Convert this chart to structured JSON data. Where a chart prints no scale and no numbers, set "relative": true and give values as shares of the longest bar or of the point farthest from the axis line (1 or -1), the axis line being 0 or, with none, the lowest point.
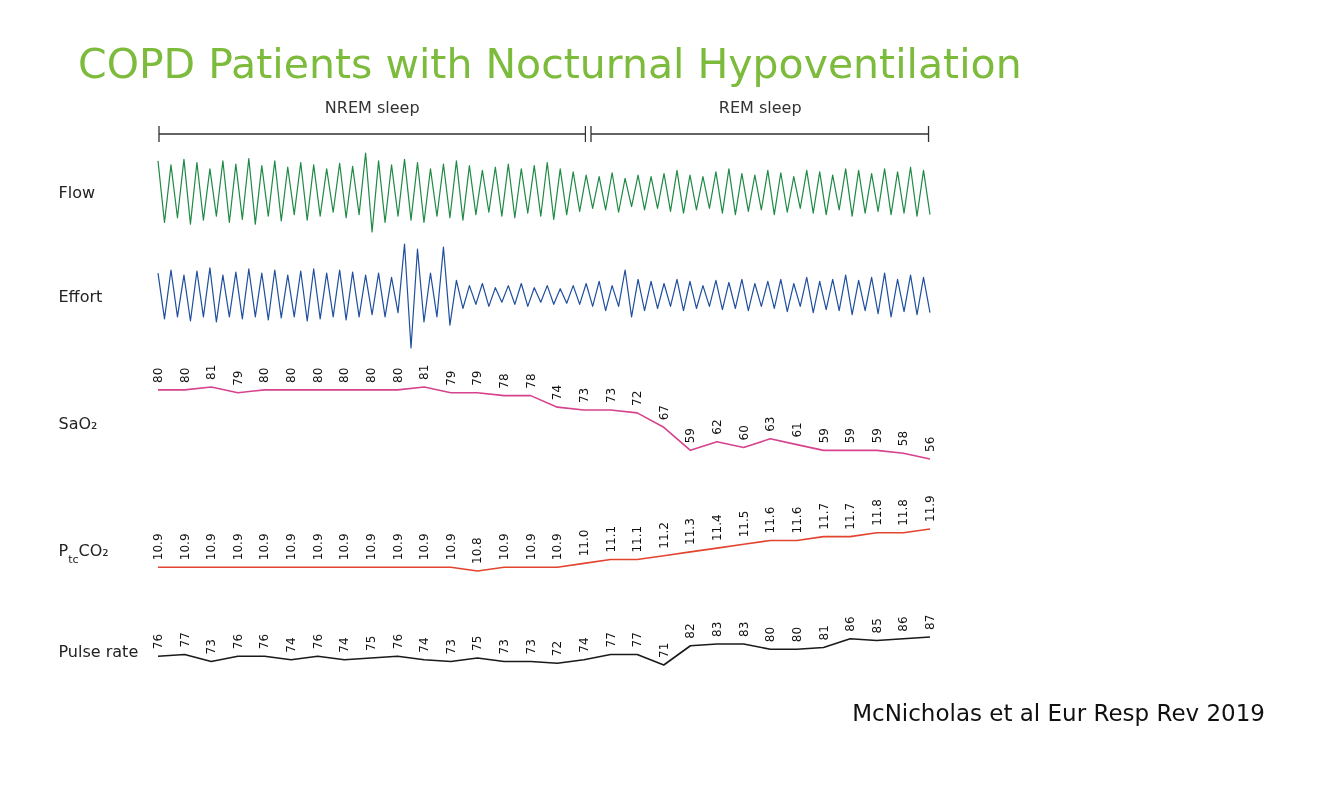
{
  "chart_data": [
    {
      "type": "line",
      "title": "COPD Patients with Nocturnal Hypoventilation",
      "ylabel": "Flow",
      "relative": true,
      "annotations": [
        "NREM sleep",
        "REM sleep"
      ],
      "categories": [
        null,
        null,
        null,
        null,
        null,
        null,
        null,
        null,
        null,
        null,
        null,
        null,
        null,
        null,
        null,
        null,
        null,
        null,
        null,
        null,
        null,
        null,
        null,
        null,
        null,
        null,
        null,
        null,
        null,
        null,
        null,
        null,
        null,
        null,
        null,
        null,
        null,
        null,
        null,
        null,
        null,
        null,
        null,
        null,
        null,
        null,
        null,
        null,
        null,
        null,
        null,
        null,
        null,
        null,
        null,
        null,
        null,
        null,
        null,
        null,
        null,
        null,
        null,
        null,
        null,
        null,
        null,
        null,
        null,
        null,
        null,
        null,
        null,
        null,
        null,
        null,
        null,
        null,
        null,
        null,
        null,
        null,
        null,
        null,
        null,
        null,
        null,
        null,
        null,
        null,
        null,
        null,
        null,
        null,
        null,
        null,
        null,
        null,
        null,
        null,
        null,
        null,
        null,
        null,
        null,
        null,
        null,
        null,
        null,
        null,
        null,
        null,
        null,
        null,
        null,
        null,
        null,
        null,
        null,
        null
      ],
      "series": [
        {
          "color": "#1e8a45",
          "values": [
            0.9,
            0.12,
            0.85,
            0.18,
            0.92,
            0.1,
            0.88,
            0.15,
            0.8,
            0.2,
            0.9,
            0.12,
            0.86,
            0.16,
            0.93,
            0.1,
            0.84,
            0.2,
            0.9,
            0.14,
            0.82,
            0.22,
            0.88,
            0.15,
            0.85,
            0.2,
            0.8,
            0.25,
            0.87,
            0.18,
            0.83,
            0.22,
            1,
            0,
            0.9,
            0.12,
            0.85,
            0.2,
            0.92,
            0.15,
            0.88,
            0.12,
            0.8,
            0.2,
            0.86,
            0.18,
            0.9,
            0.15,
            0.84,
            0.22,
            0.78,
            0.25,
            0.82,
            0.2,
            0.86,
            0.18,
            0.8,
            0.24,
            0.84,
            0.2,
            0.88,
            0.16,
            0.8,
            0.22,
            0.76,
            0.26,
            0.72,
            0.3,
            0.7,
            0.28,
            0.75,
            0.25,
            0.68,
            0.32,
            0.72,
            0.28,
            0.7,
            0.3,
            0.74,
            0.26,
            0.78,
            0.24,
            0.72,
            0.28,
            0.7,
            0.3,
            0.76,
            0.24,
            0.8,
            0.22,
            0.74,
            0.26,
            0.72,
            0.28,
            0.78,
            0.22,
            0.75,
            0.25,
            0.7,
            0.3,
            0.78,
            0.24,
            0.76,
            0.22,
            0.72,
            0.28,
            0.8,
            0.2,
            0.78,
            0.24,
            0.74,
            0.26,
            0.8,
            0.22,
            0.76,
            0.24,
            0.82,
            0.2,
            0.78,
            0.22
          ]
        }
      ]
    },
    {
      "type": "line",
      "ylabel": "Effort",
      "relative": true,
      "categories": [
        null,
        null,
        null,
        null,
        null,
        null,
        null,
        null,
        null,
        null,
        null,
        null,
        null,
        null,
        null,
        null,
        null,
        null,
        null,
        null,
        null,
        null,
        null,
        null,
        null,
        null,
        null,
        null,
        null,
        null,
        null,
        null,
        null,
        null,
        null,
        null,
        null,
        null,
        null,
        null,
        null,
        null,
        null,
        null,
        null,
        null,
        null,
        null,
        null,
        null,
        null,
        null,
        null,
        null,
        null,
        null,
        null,
        null,
        null,
        null,
        null,
        null,
        null,
        null,
        null,
        null,
        null,
        null,
        null,
        null,
        null,
        null,
        null,
        null,
        null,
        null,
        null,
        null,
        null,
        null,
        null,
        null,
        null,
        null,
        null,
        null,
        null,
        null,
        null,
        null,
        null,
        null,
        null,
        null,
        null,
        null,
        null,
        null,
        null,
        null,
        null,
        null,
        null,
        null,
        null,
        null,
        null,
        null,
        null,
        null,
        null,
        null,
        null,
        null,
        null,
        null,
        null,
        null,
        null,
        null
      ],
      "series": [
        {
          "color": "#1f4f9e",
          "values": [
            0.72,
            0.28,
            0.75,
            0.3,
            0.7,
            0.26,
            0.74,
            0.3,
            0.77,
            0.25,
            0.7,
            0.3,
            0.73,
            0.28,
            0.76,
            0.3,
            0.72,
            0.27,
            0.75,
            0.29,
            0.7,
            0.3,
            0.74,
            0.26,
            0.76,
            0.28,
            0.72,
            0.3,
            0.75,
            0.27,
            0.73,
            0.3,
            0.7,
            0.32,
            0.72,
            0.3,
            0.68,
            0.34,
            1,
            0,
            0.95,
            0.25,
            0.72,
            0.3,
            0.97,
            0.22,
            0.65,
            0.38,
            0.6,
            0.42,
            0.62,
            0.4,
            0.58,
            0.44,
            0.6,
            0.42,
            0.62,
            0.4,
            0.58,
            0.44,
            0.6,
            0.42,
            0.57,
            0.43,
            0.6,
            0.42,
            0.62,
            0.4,
            0.64,
            0.36,
            0.6,
            0.4,
            0.75,
            0.3,
            0.66,
            0.36,
            0.64,
            0.38,
            0.62,
            0.4,
            0.66,
            0.36,
            0.64,
            0.38,
            0.6,
            0.4,
            0.65,
            0.37,
            0.63,
            0.38,
            0.66,
            0.36,
            0.62,
            0.4,
            0.64,
            0.38,
            0.66,
            0.35,
            0.62,
            0.4,
            0.68,
            0.34,
            0.64,
            0.37,
            0.66,
            0.36,
            0.7,
            0.32,
            0.65,
            0.36,
            0.68,
            0.33,
            0.72,
            0.3,
            0.66,
            0.35,
            0.7,
            0.32,
            0.68,
            0.34
          ]
        }
      ]
    },
    {
      "type": "line",
      "ylabel": "SaO₂",
      "data_labels": true,
      "categories": [
        null,
        null,
        null,
        null,
        null,
        null,
        null,
        null,
        null,
        null,
        null,
        null,
        null,
        null,
        null,
        null,
        null,
        null,
        null,
        null,
        null,
        null,
        null,
        null,
        null,
        null,
        null,
        null,
        null,
        null
      ],
      "series": [
        {
          "color": "#d6428c",
          "values": [
            80,
            80,
            81,
            79,
            80,
            80,
            80,
            80,
            80,
            80,
            81,
            79,
            79,
            78,
            78,
            74,
            73,
            73,
            72,
            67,
            59,
            62,
            60,
            63,
            61,
            59,
            59,
            59,
            58,
            56
          ]
        }
      ]
    },
    {
      "type": "line",
      "ylabel": "P$_{tc}$CO₂",
      "categories": [
        null,
        null,
        null,
        null,
        null,
        null,
        null,
        null,
        null,
        null,
        null,
        null,
        null,
        null,
        null,
        null,
        null,
        null,
        null,
        null,
        null,
        null,
        null,
        null,
        null,
        null,
        null,
        null,
        null,
        null
      ],
      "series": [
        {
          "color": "#e2442f",
          "values": [
            10.9,
            10.9,
            10.9,
            10.9,
            10.9,
            10.9,
            10.9,
            10.9,
            10.9,
            10.9,
            10.9,
            10.9,
            10.8,
            10.9,
            10.9,
            10.9,
            11.0,
            11.1,
            11.1,
            11.2,
            11.3,
            11.4,
            11.5,
            11.6,
            11.6,
            11.7,
            11.7,
            11.8,
            11.8,
            11.9
          ],
          "value_labels": [
            "10.9",
            "10.9",
            "10.9",
            "10.9",
            "10.9",
            "10.9",
            "10.9",
            "10.9",
            "10.9",
            "10.9",
            "10.9",
            "10.9",
            "10.8",
            "10.9",
            "10.9",
            "10.9",
            "11.0",
            "11.1",
            "11.1",
            "11.2",
            "11.3",
            "11.4",
            "11.5",
            "11.6",
            "11.6",
            "11.7",
            "11.7",
            "11.8",
            "11.8",
            "11.9"
          ]
        }
      ]
    },
    {
      "type": "line",
      "ylabel": "Pulse rate",
      "data_labels": true,
      "annotations": [
        "McNicholas et al Eur Resp Rev 2019"
      ],
      "categories": [
        null,
        null,
        null,
        null,
        null,
        null,
        null,
        null,
        null,
        null,
        null,
        null,
        null,
        null,
        null,
        null,
        null,
        null,
        null,
        null,
        null,
        null,
        null,
        null,
        null,
        null,
        null,
        null,
        null,
        null
      ],
      "series": [
        {
          "color": "#1a1a1a",
          "values": [
            76,
            77,
            73,
            76,
            76,
            74,
            76,
            74,
            75,
            76,
            74,
            73,
            75,
            73,
            73,
            72,
            74,
            77,
            77,
            71,
            82,
            83,
            83,
            80,
            80,
            81,
            86,
            85,
            86,
            87
          ]
        }
      ]
    }
  ]
}
